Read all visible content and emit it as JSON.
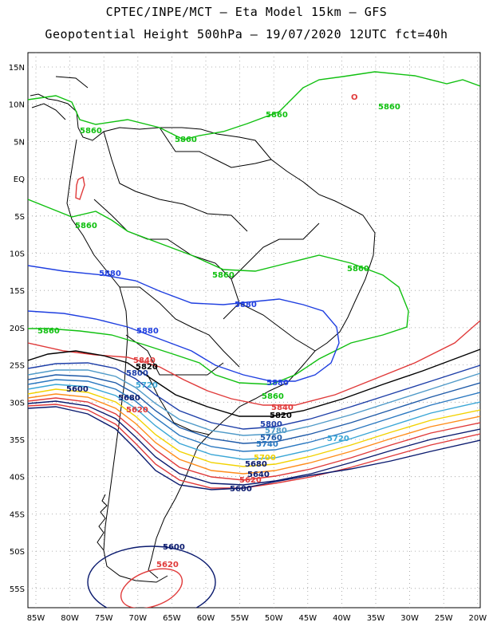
{
  "title_line1": "CPTEC/INPE/MCT –  Eta Model 15km – GFS",
  "title_line2": "Geopotential Height 500hPa – 19/07/2020 12UTC fct=40h",
  "lat_ticks": [
    "15N",
    "10N",
    "5N",
    "EQ",
    "5S",
    "10S",
    "15S",
    "20S",
    "25S",
    "30S",
    "35S",
    "40S",
    "45S",
    "50S",
    "55S"
  ],
  "lon_ticks": [
    "85W",
    "80W",
    "75W",
    "70W",
    "65W",
    "60W",
    "55W",
    "50W",
    "45W",
    "40W",
    "35W",
    "30W",
    "25W",
    "20W"
  ],
  "contour_colors": {
    "5600": "#0a1a6e",
    "5620": "#e03a3a",
    "5640": "#0a1a6e",
    "5660": "#ff8c1a",
    "5680": "#0a1a6e",
    "5700": "#f2d200",
    "5720": "#3aa6d6",
    "5740": "#2a78c0",
    "5760": "#1e5aa8",
    "5780": "#4f9ac8",
    "5800": "#1e3fa8",
    "5820": "#000000",
    "5840": "#e03a3a",
    "5860": "#10c010",
    "5880": "#1f3fe0"
  },
  "contour_labels": [
    {
      "text": "5860",
      "color": "#10c010"
    },
    {
      "text": "5860",
      "color": "#10c010"
    },
    {
      "text": "5860",
      "color": "#10c010"
    },
    {
      "text": "5860",
      "color": "#10c010"
    },
    {
      "text": "5860",
      "color": "#10c010"
    },
    {
      "text": "5860",
      "color": "#10c010"
    },
    {
      "text": "5860",
      "color": "#10c010"
    },
    {
      "text": "5860",
      "color": "#10c010"
    },
    {
      "text": "5860",
      "color": "#10c010"
    },
    {
      "text": "5880",
      "color": "#1f3fe0"
    },
    {
      "text": "5880",
      "color": "#1f3fe0"
    },
    {
      "text": "5880",
      "color": "#1f3fe0"
    },
    {
      "text": "5880",
      "color": "#1f3fe0"
    },
    {
      "text": "5840",
      "color": "#e03a3a"
    },
    {
      "text": "5840",
      "color": "#e03a3a"
    },
    {
      "text": "5820",
      "color": "#000000"
    },
    {
      "text": "5820",
      "color": "#000000"
    },
    {
      "text": "5800",
      "color": "#1e3fa8"
    },
    {
      "text": "5800",
      "color": "#1e3fa8"
    },
    {
      "text": "5780",
      "color": "#4f9ac8"
    },
    {
      "text": "5760",
      "color": "#1e5aa8"
    },
    {
      "text": "5740",
      "color": "#2a78c0"
    },
    {
      "text": "5720",
      "color": "#3aa6d6"
    },
    {
      "text": "5720",
      "color": "#3aa6d6"
    },
    {
      "text": "5700",
      "color": "#f2d200"
    },
    {
      "text": "5680",
      "color": "#0a1a6e"
    },
    {
      "text": "5680",
      "color": "#0a1a6e"
    },
    {
      "text": "5640",
      "color": "#0a1a6e"
    },
    {
      "text": "5620",
      "color": "#e03a3a"
    },
    {
      "text": "5620",
      "color": "#e03a3a"
    },
    {
      "text": "5620",
      "color": "#e03a3a"
    },
    {
      "text": "5600",
      "color": "#0a1a6e"
    },
    {
      "text": "5600",
      "color": "#0a1a6e"
    },
    {
      "text": "5600",
      "color": "#0a1a6e"
    },
    {
      "text": "O",
      "color": "#e03a3a"
    }
  ]
}
